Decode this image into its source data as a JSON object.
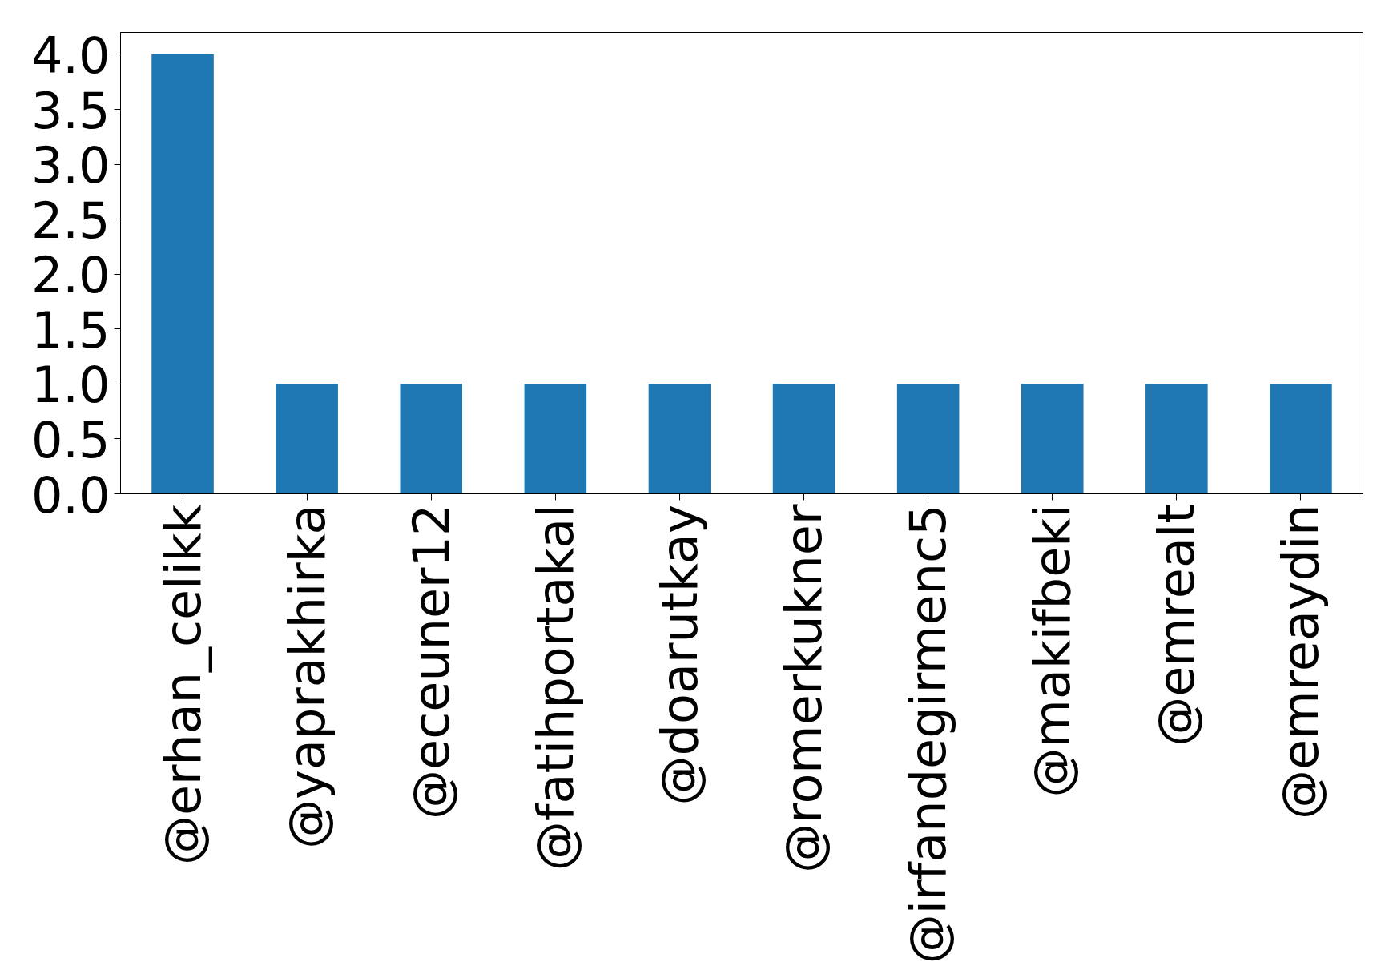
{
  "chart_data": {
    "type": "bar",
    "categories": [
      "@erhan_celikk",
      "@yaprakhirka",
      "@eceuner12",
      "@fatihportakal",
      "@doarutkay",
      "@romerkukner",
      "@irfandegirmenc5",
      "@makifbeki",
      "@emrealt",
      "@emreaydin"
    ],
    "values": [
      4,
      1,
      1,
      1,
      1,
      1,
      1,
      1,
      1,
      1
    ],
    "color": "#1f77b4",
    "ylim": [
      0,
      4.2
    ],
    "yticks": [
      {
        "value": 0,
        "label": "0.0"
      },
      {
        "value": 0.5,
        "label": "0.5"
      },
      {
        "value": 1,
        "label": "1.0"
      },
      {
        "value": 1.5,
        "label": "1.5"
      },
      {
        "value": 2,
        "label": "2.0"
      },
      {
        "value": 2.5,
        "label": "2.5"
      },
      {
        "value": 3,
        "label": "3.0"
      },
      {
        "value": 3.5,
        "label": "3.5"
      },
      {
        "value": 4,
        "label": "4.0"
      }
    ],
    "grid": false
  }
}
